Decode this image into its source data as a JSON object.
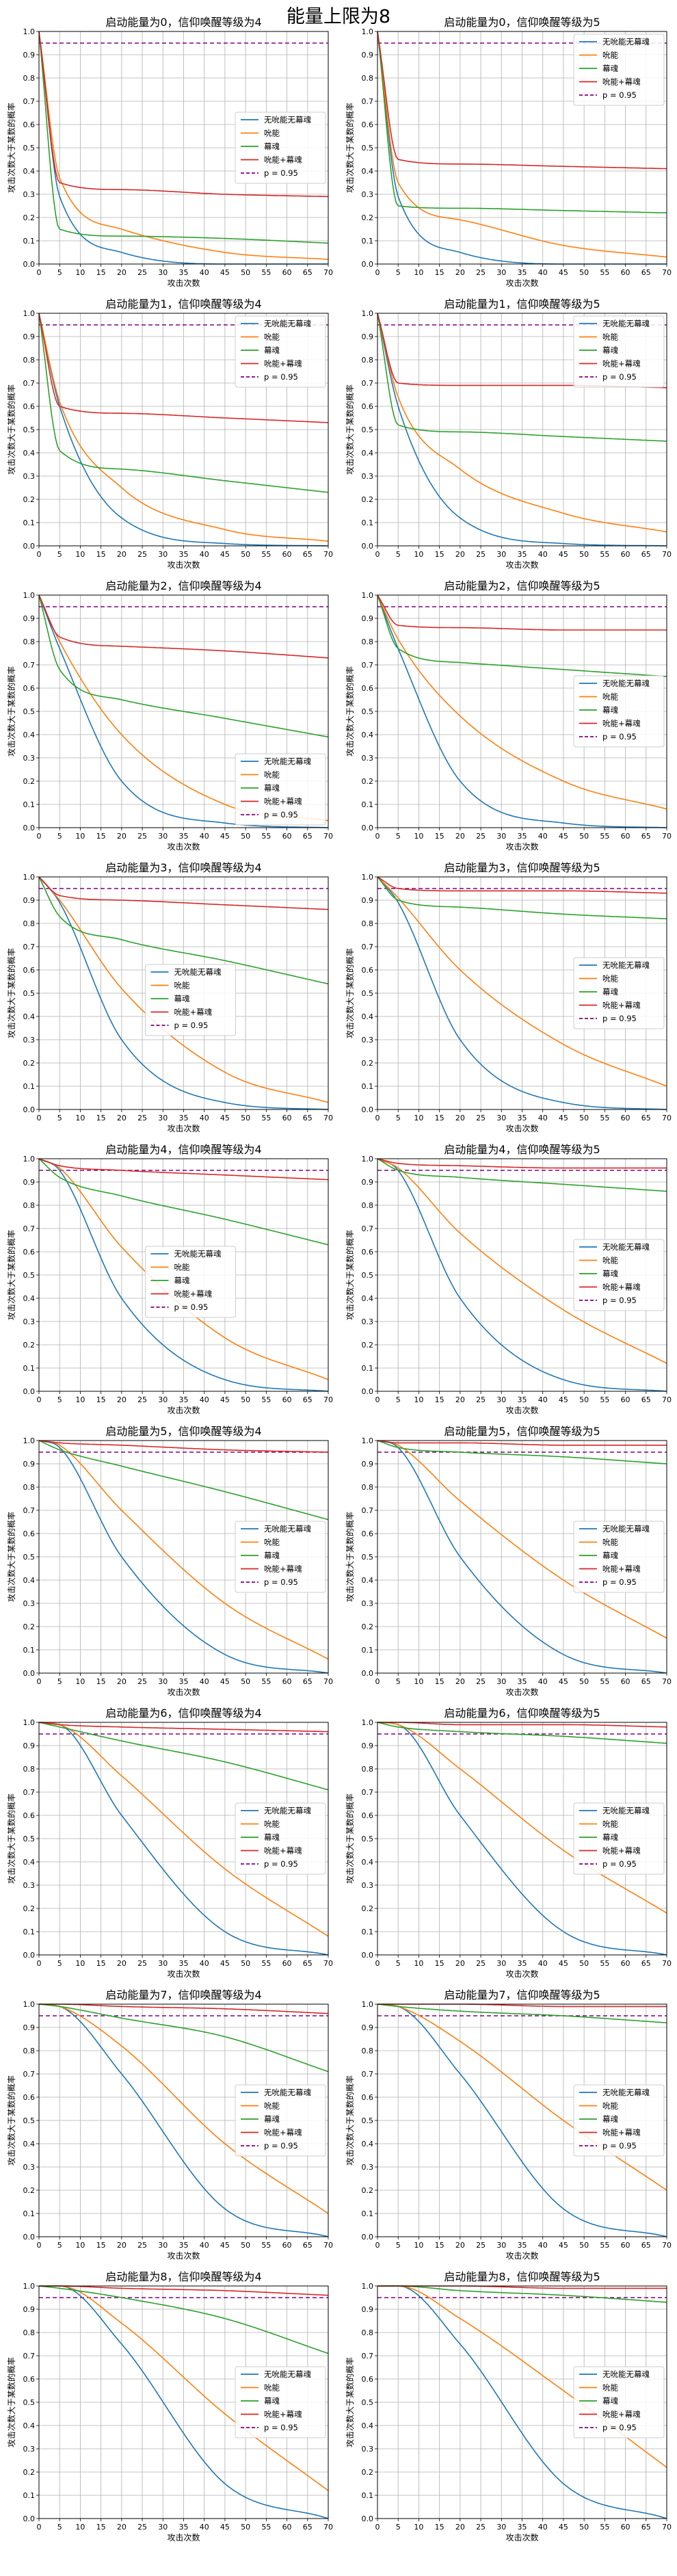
{
  "suptitle": "能量上限为8",
  "colors": {
    "none": "#1f77b4",
    "absorb": "#ff7f0e",
    "reflect": "#2ca02c",
    "both": "#d62728",
    "p": "#800080"
  },
  "common": {
    "xlabel": "攻击次数",
    "ylabel": "攻击次数大于某数的概率",
    "xticks": [
      0,
      5,
      10,
      15,
      20,
      25,
      30,
      35,
      40,
      45,
      50,
      55,
      60,
      65,
      70
    ],
    "yticks": [
      "0.0",
      "0.1",
      "0.2",
      "0.3",
      "0.4",
      "0.5",
      "0.6",
      "0.7",
      "0.8",
      "0.9",
      "1.0"
    ],
    "xlim": [
      0,
      70
    ],
    "ylim": [
      0,
      1
    ],
    "grid": true,
    "legend": [
      "无吮能无幕魂",
      "吮能",
      "幕魂",
      "吮能+幕魂",
      "p = 0.95"
    ],
    "p_line": 0.95
  },
  "chart_data": [
    {
      "type": "line",
      "title": "启动能量为0，信仰唤醒等级为4",
      "legend_pos": "center-right",
      "series": [
        {
          "name": "无吮能无幕魂",
          "values": [
            1.0,
            0.29,
            0.05,
            0.0,
            0.0
          ]
        },
        {
          "name": "吮能",
          "values": [
            1.0,
            0.37,
            0.15,
            0.05,
            0.02
          ]
        },
        {
          "name": "幕魂",
          "values": [
            1.0,
            0.15,
            0.12,
            0.11,
            0.09
          ]
        },
        {
          "name": "吮能+幕魂",
          "values": [
            1.0,
            0.35,
            0.32,
            0.3,
            0.29
          ]
        }
      ]
    },
    {
      "type": "line",
      "title": "启动能量为0，信仰唤醒等级为5",
      "legend_pos": "upper-right",
      "series": [
        {
          "name": "无吮能无幕魂",
          "values": [
            1.0,
            0.29,
            0.05,
            0.0,
            0.0
          ]
        },
        {
          "name": "吮能",
          "values": [
            1.0,
            0.35,
            0.19,
            0.08,
            0.03
          ]
        },
        {
          "name": "幕魂",
          "values": [
            1.0,
            0.25,
            0.24,
            0.23,
            0.22
          ]
        },
        {
          "name": "吮能+幕魂",
          "values": [
            1.0,
            0.45,
            0.43,
            0.42,
            0.41
          ]
        }
      ]
    },
    {
      "type": "line",
      "title": "启动能量为1，信仰唤醒等级为4",
      "legend_pos": "upper-right",
      "series": [
        {
          "name": "无吮能无幕魂",
          "values": [
            1.0,
            0.6,
            0.12,
            0.01,
            0.0
          ]
        },
        {
          "name": "吮能",
          "values": [
            1.0,
            0.62,
            0.25,
            0.07,
            0.02
          ]
        },
        {
          "name": "幕魂",
          "values": [
            1.0,
            0.41,
            0.33,
            0.28,
            0.23
          ]
        },
        {
          "name": "吮能+幕魂",
          "values": [
            1.0,
            0.6,
            0.57,
            0.55,
            0.53
          ]
        }
      ]
    },
    {
      "type": "line",
      "title": "启动能量为1，信仰唤醒等级为5",
      "legend_pos": "upper-right",
      "series": [
        {
          "name": "无吮能无幕魂",
          "values": [
            1.0,
            0.6,
            0.12,
            0.01,
            0.0
          ]
        },
        {
          "name": "吮能",
          "values": [
            1.0,
            0.64,
            0.33,
            0.14,
            0.06
          ]
        },
        {
          "name": "幕魂",
          "values": [
            1.0,
            0.52,
            0.49,
            0.47,
            0.45
          ]
        },
        {
          "name": "吮能+幕魂",
          "values": [
            1.0,
            0.7,
            0.69,
            0.69,
            0.68
          ]
        }
      ]
    },
    {
      "type": "line",
      "title": "启动能量为2，信仰唤醒等级为4",
      "legend_pos": "lower-right",
      "series": [
        {
          "name": "无吮能无幕魂",
          "values": [
            1.0,
            0.77,
            0.2,
            0.02,
            0.0
          ]
        },
        {
          "name": "吮能",
          "values": [
            1.0,
            0.8,
            0.4,
            0.1,
            0.03
          ]
        },
        {
          "name": "幕魂",
          "values": [
            1.0,
            0.68,
            0.55,
            0.47,
            0.39
          ]
        },
        {
          "name": "吮能+幕魂",
          "values": [
            1.0,
            0.82,
            0.78,
            0.76,
            0.73
          ]
        }
      ]
    },
    {
      "type": "line",
      "title": "启动能量为2，信仰唤醒等级为5",
      "legend_pos": "center-right",
      "series": [
        {
          "name": "无吮能无幕魂",
          "values": [
            1.0,
            0.77,
            0.2,
            0.02,
            0.0
          ]
        },
        {
          "name": "吮能",
          "values": [
            1.0,
            0.81,
            0.48,
            0.2,
            0.08
          ]
        },
        {
          "name": "幕魂",
          "values": [
            1.0,
            0.77,
            0.71,
            0.68,
            0.65
          ]
        },
        {
          "name": "吮能+幕魂",
          "values": [
            1.0,
            0.87,
            0.86,
            0.85,
            0.85
          ]
        }
      ]
    },
    {
      "type": "line",
      "title": "启动能量为3，信仰唤醒等级为4",
      "legend_pos": "center",
      "series": [
        {
          "name": "无吮能无幕魂",
          "values": [
            1.0,
            0.89,
            0.3,
            0.03,
            0.0
          ]
        },
        {
          "name": "吮能",
          "values": [
            1.0,
            0.9,
            0.52,
            0.16,
            0.03
          ]
        },
        {
          "name": "幕魂",
          "values": [
            1.0,
            0.83,
            0.73,
            0.64,
            0.54
          ]
        },
        {
          "name": "吮能+幕魂",
          "values": [
            1.0,
            0.92,
            0.9,
            0.88,
            0.86
          ]
        }
      ]
    },
    {
      "type": "line",
      "title": "启动能量为3，信仰唤醒等级为5",
      "legend_pos": "center-right",
      "series": [
        {
          "name": "无吮能无幕魂",
          "values": [
            1.0,
            0.89,
            0.3,
            0.03,
            0.0
          ]
        },
        {
          "name": "吮能",
          "values": [
            1.0,
            0.91,
            0.6,
            0.28,
            0.1
          ]
        },
        {
          "name": "幕魂",
          "values": [
            1.0,
            0.9,
            0.87,
            0.84,
            0.82
          ]
        },
        {
          "name": "吮能+幕魂",
          "values": [
            1.0,
            0.95,
            0.94,
            0.94,
            0.93
          ]
        }
      ]
    },
    {
      "type": "line",
      "title": "启动能量为4，信仰唤醒等级为4",
      "legend_pos": "center",
      "series": [
        {
          "name": "无吮能无幕魂",
          "values": [
            1.0,
            0.95,
            0.4,
            0.05,
            0.0
          ]
        },
        {
          "name": "吮能",
          "values": [
            1.0,
            0.96,
            0.62,
            0.23,
            0.05
          ]
        },
        {
          "name": "幕魂",
          "values": [
            1.0,
            0.92,
            0.84,
            0.74,
            0.63
          ]
        },
        {
          "name": "吮能+幕魂",
          "values": [
            1.0,
            0.97,
            0.95,
            0.93,
            0.91
          ]
        }
      ]
    },
    {
      "type": "line",
      "title": "启动能量为4，信仰唤醒等级为5",
      "legend_pos": "center-right",
      "series": [
        {
          "name": "无吮能无幕魂",
          "values": [
            1.0,
            0.95,
            0.4,
            0.05,
            0.0
          ]
        },
        {
          "name": "吮能",
          "values": [
            1.0,
            0.96,
            0.68,
            0.35,
            0.12
          ]
        },
        {
          "name": "幕魂",
          "values": [
            1.0,
            0.95,
            0.92,
            0.89,
            0.86
          ]
        },
        {
          "name": "吮能+幕魂",
          "values": [
            1.0,
            0.98,
            0.97,
            0.96,
            0.96
          ]
        }
      ]
    },
    {
      "type": "line",
      "title": "启动能量为5，信仰唤醒等级为4",
      "legend_pos": "center-right",
      "series": [
        {
          "name": "无吮能无幕魂",
          "values": [
            1.0,
            0.97,
            0.5,
            0.08,
            0.0
          ]
        },
        {
          "name": "吮能",
          "values": [
            1.0,
            0.98,
            0.7,
            0.3,
            0.06
          ]
        },
        {
          "name": "幕魂",
          "values": [
            1.0,
            0.96,
            0.89,
            0.78,
            0.66
          ]
        },
        {
          "name": "吮能+幕魂",
          "values": [
            1.0,
            0.99,
            0.98,
            0.96,
            0.95
          ]
        }
      ]
    },
    {
      "type": "line",
      "title": "启动能量为5，信仰唤醒等级为5",
      "legend_pos": "center-right",
      "series": [
        {
          "name": "无吮能无幕魂",
          "values": [
            1.0,
            0.97,
            0.5,
            0.08,
            0.0
          ]
        },
        {
          "name": "吮能",
          "values": [
            1.0,
            0.98,
            0.74,
            0.4,
            0.15
          ]
        },
        {
          "name": "幕魂",
          "values": [
            1.0,
            0.97,
            0.95,
            0.93,
            0.9
          ]
        },
        {
          "name": "吮能+幕魂",
          "values": [
            1.0,
            0.99,
            0.99,
            0.98,
            0.98
          ]
        }
      ]
    },
    {
      "type": "line",
      "title": "启动能量为6，信仰唤醒等级为4",
      "legend_pos": "center-right",
      "series": [
        {
          "name": "无吮能无幕魂",
          "values": [
            1.0,
            0.99,
            0.6,
            0.1,
            0.0
          ]
        },
        {
          "name": "吮能",
          "values": [
            1.0,
            0.99,
            0.77,
            0.37,
            0.08
          ]
        },
        {
          "name": "幕魂",
          "values": [
            1.0,
            0.98,
            0.92,
            0.83,
            0.71
          ]
        },
        {
          "name": "吮能+幕魂",
          "values": [
            1.0,
            0.99,
            0.98,
            0.97,
            0.96
          ]
        }
      ]
    },
    {
      "type": "line",
      "title": "启动能量为6，信仰唤醒等级为5",
      "legend_pos": "center-right",
      "series": [
        {
          "name": "无吮能无幕魂",
          "values": [
            1.0,
            0.99,
            0.6,
            0.1,
            0.0
          ]
        },
        {
          "name": "吮能",
          "values": [
            1.0,
            0.99,
            0.8,
            0.45,
            0.18
          ]
        },
        {
          "name": "幕魂",
          "values": [
            1.0,
            0.98,
            0.96,
            0.94,
            0.91
          ]
        },
        {
          "name": "吮能+幕魂",
          "values": [
            1.0,
            1.0,
            0.99,
            0.99,
            0.98
          ]
        }
      ]
    },
    {
      "type": "line",
      "title": "启动能量为7，信仰唤醒等级为4",
      "legend_pos": "center-right",
      "series": [
        {
          "name": "无吮能无幕魂",
          "values": [
            1.0,
            0.99,
            0.7,
            0.12,
            0.0
          ]
        },
        {
          "name": "吮能",
          "values": [
            1.0,
            0.99,
            0.82,
            0.4,
            0.1
          ]
        },
        {
          "name": "幕魂",
          "values": [
            1.0,
            0.99,
            0.94,
            0.86,
            0.71
          ]
        },
        {
          "name": "吮能+幕魂",
          "values": [
            1.0,
            1.0,
            0.99,
            0.98,
            0.96
          ]
        }
      ]
    },
    {
      "type": "line",
      "title": "启动能量为7，信仰唤醒等级为5",
      "legend_pos": "center-right",
      "series": [
        {
          "name": "无吮能无幕魂",
          "values": [
            1.0,
            0.99,
            0.7,
            0.12,
            0.0
          ]
        },
        {
          "name": "吮能",
          "values": [
            1.0,
            0.99,
            0.84,
            0.5,
            0.2
          ]
        },
        {
          "name": "幕魂",
          "values": [
            1.0,
            0.99,
            0.97,
            0.95,
            0.92
          ]
        },
        {
          "name": "吮能+幕魂",
          "values": [
            1.0,
            1.0,
            1.0,
            0.99,
            0.99
          ]
        }
      ]
    },
    {
      "type": "line",
      "title": "启动能量为8，信仰唤醒等级为4",
      "legend_pos": "center-right",
      "series": [
        {
          "name": "无吮能无幕魂",
          "values": [
            1.0,
            1.0,
            0.75,
            0.15,
            0.0
          ]
        },
        {
          "name": "吮能",
          "values": [
            1.0,
            1.0,
            0.84,
            0.45,
            0.12
          ]
        },
        {
          "name": "幕魂",
          "values": [
            1.0,
            0.99,
            0.95,
            0.86,
            0.71
          ]
        },
        {
          "name": "吮能+幕魂",
          "values": [
            1.0,
            1.0,
            0.99,
            0.98,
            0.96
          ]
        }
      ]
    },
    {
      "type": "line",
      "title": "启动能量为8，信仰唤醒等级为5",
      "legend_pos": "center-right",
      "series": [
        {
          "name": "无吮能无幕魂",
          "values": [
            1.0,
            1.0,
            0.75,
            0.15,
            0.0
          ]
        },
        {
          "name": "吮能",
          "values": [
            1.0,
            1.0,
            0.86,
            0.55,
            0.22
          ]
        },
        {
          "name": "幕魂",
          "values": [
            1.0,
            1.0,
            0.98,
            0.96,
            0.93
          ]
        },
        {
          "name": "吮能+幕魂",
          "values": [
            1.0,
            1.0,
            1.0,
            0.99,
            0.99
          ]
        }
      ]
    }
  ]
}
